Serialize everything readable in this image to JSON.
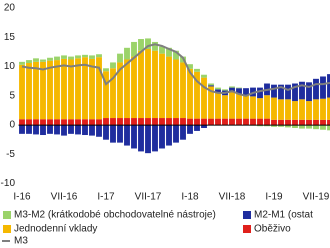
{
  "chart_data": {
    "type": "stacked_bar",
    "categories": [
      "I-16",
      null,
      null,
      null,
      null,
      null,
      "VII-16",
      null,
      null,
      null,
      null,
      null,
      "I-17",
      null,
      null,
      null,
      null,
      null,
      "VII-17",
      null,
      null,
      null,
      null,
      null,
      "I-18",
      null,
      null,
      null,
      null,
      null,
      "VII-18",
      null,
      null,
      null,
      null,
      null,
      "I-19",
      null,
      null,
      null,
      null,
      null,
      "VII-19",
      null,
      null
    ],
    "series": [
      {
        "name": "M3-M2 (krátkodobé obchodovatelné nástroje)",
        "color": "#9bd36a",
        "values": [
          0.5,
          0.5,
          0.6,
          0.4,
          0.5,
          0.6,
          0.6,
          0.5,
          0.5,
          0.4,
          0.6,
          0.5,
          0.5,
          1.0,
          1.5,
          2.0,
          2.5,
          2.0,
          1.8,
          1.5,
          1.2,
          1.5,
          1.5,
          1.0,
          0.8,
          0.5,
          0.5,
          0.3,
          0.3,
          0.2,
          0.2,
          0.1,
          0,
          -0.1,
          -0.2,
          -0.2,
          -0.3,
          -0.3,
          -0.4,
          -0.5,
          -0.6,
          -0.6,
          -0.7,
          -0.8,
          -0.9
        ]
      },
      {
        "name": "M2-M1 (ostat",
        "color": "#1f2d9e",
        "values": [
          -1.5,
          -1.5,
          -1.6,
          -1.7,
          -1.5,
          -1.6,
          -1.8,
          -1.5,
          -1.6,
          -1.7,
          -1.8,
          -2.0,
          -2.5,
          -3.0,
          -3.0,
          -3.5,
          -4.0,
          -4.5,
          -4.8,
          -4.5,
          -4.0,
          -3.5,
          -3.0,
          -2.5,
          -1.5,
          -1.0,
          -0.5,
          0.2,
          0.5,
          0.8,
          0.8,
          1.0,
          1.2,
          1.5,
          1.8,
          2.0,
          2.2,
          2.5,
          2.5,
          3.0,
          3.0,
          3.2,
          3.5,
          3.8,
          4.0
        ]
      },
      {
        "name": "Jednodenní vklady",
        "color": "#f5b800",
        "values": [
          9.3,
          9.6,
          9.8,
          9.8,
          10.0,
          10.1,
          10.3,
          10.2,
          10.4,
          10.6,
          10.3,
          10.6,
          8.0,
          8.5,
          9.5,
          10.0,
          10.5,
          11.5,
          11.8,
          11.5,
          11.0,
          10.5,
          10.0,
          9.5,
          8.5,
          8.0,
          7.0,
          5.5,
          4.5,
          4.0,
          4.5,
          4.2,
          4.0,
          3.8,
          3.5,
          4.0,
          3.8,
          3.5,
          3.5,
          3.2,
          3.5,
          3.2,
          3.5,
          3.6,
          3.8
        ]
      },
      {
        "name": "Oběživo",
        "color": "#e0201b",
        "values": [
          1.0,
          1.0,
          1.0,
          1.0,
          1.0,
          1.0,
          1.0,
          1.0,
          1.0,
          1.0,
          1.0,
          1.0,
          1.2,
          1.2,
          1.2,
          1.2,
          1.2,
          1.2,
          1.2,
          1.2,
          1.2,
          1.2,
          1.2,
          1.2,
          1.1,
          1.1,
          1.1,
          1.1,
          1.1,
          1.1,
          1.1,
          1.1,
          1.1,
          1.1,
          1.1,
          1.1,
          0.9,
          0.9,
          0.9,
          0.9,
          0.9,
          0.9,
          0.9,
          0.9,
          0.9
        ]
      }
    ],
    "line": {
      "name": "M3",
      "color": "#7f7f7f",
      "values": [
        10,
        9.8,
        9.7,
        9.5,
        9.8,
        10,
        10.2,
        10,
        10.2,
        10.3,
        10,
        9.8,
        7.0,
        8,
        9.5,
        10.5,
        11.5,
        12.5,
        13.5,
        13.8,
        13.5,
        13,
        12.5,
        11.5,
        9,
        7.5,
        6.5,
        5.8,
        5.5,
        5.5,
        5.8,
        5.3,
        5.0,
        5.5,
        5.8,
        6,
        6.2,
        6.5,
        6.0,
        6.5,
        6.8,
        6.5,
        7.0,
        7.0,
        7.2
      ]
    },
    "ylim": [
      -10,
      20
    ],
    "yticks": [
      -10,
      -5,
      0,
      5,
      10,
      15,
      20
    ]
  }
}
